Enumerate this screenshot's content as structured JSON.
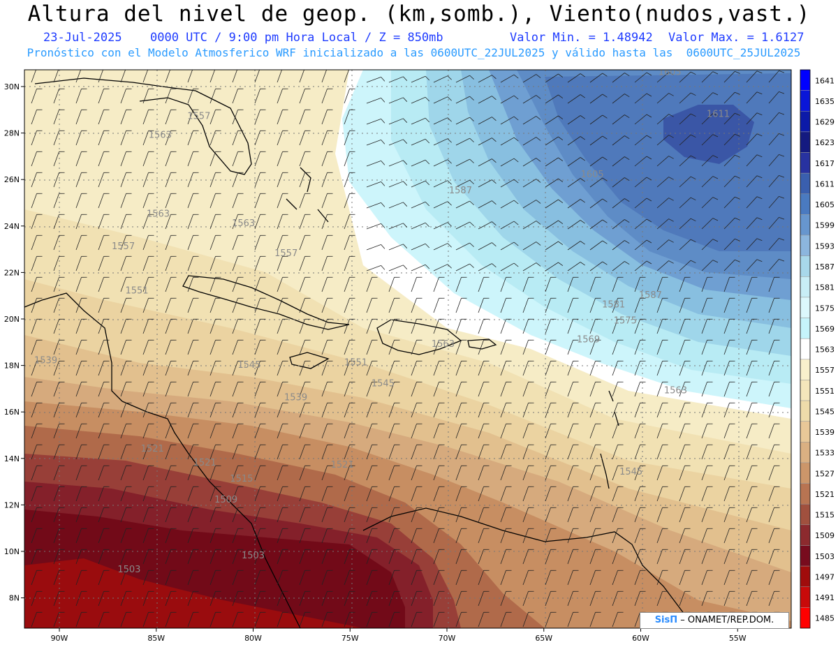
{
  "header": {
    "title": "Altura del nivel de geop. (km,somb.), Viento(nudos,vast.)",
    "date": "23-Jul-2025",
    "time": "0000 UTC / 9:00 pm Hora Local / Z = 850mb",
    "min": "Valor Min. = 1.48942",
    "max": "Valor Max. = 1.6127",
    "subtitle": "Pronóstico con el Modelo Atmosferico WRF inicializado a las 0600UTC_22JUL2025 y válido hasta las  0600UTC_25JUL2025"
  },
  "axes": {
    "lat_labels": [
      "30N",
      "28N",
      "26N",
      "24N",
      "22N",
      "20N",
      "18N",
      "16N",
      "14N",
      "12N",
      "10N",
      "8N"
    ],
    "lat_values": [
      30,
      28,
      26,
      24,
      22,
      20,
      18,
      16,
      14,
      12,
      10,
      8
    ],
    "lon_labels": [
      "90W",
      "85W",
      "80W",
      "75W",
      "70W",
      "65W",
      "60W",
      "55W"
    ],
    "lon_values": [
      -90,
      -85,
      -80,
      -75,
      -70,
      -65,
      -60,
      -55
    ]
  },
  "colorbar": {
    "labels": [
      "1641",
      "1635",
      "1629",
      "1623",
      "1617",
      "1611",
      "1605",
      "1599",
      "1593",
      "1587",
      "1581",
      "1575",
      "1569",
      "1563",
      "1557",
      "1551",
      "1545",
      "1539",
      "1533",
      "1527",
      "1521",
      "1515",
      "1509",
      "1503",
      "1497",
      "1491",
      "1485"
    ],
    "colors": [
      "#0000ff",
      "#0a16d8",
      "#0c1aa8",
      "#141a80",
      "#2832a0",
      "#3a5fae",
      "#4a7ac0",
      "#6796ce",
      "#8cb6de",
      "#a8d8ea",
      "#c8eef6",
      "#dcf8fc",
      "#c6f4fb",
      "#ffffff",
      "#f8f0cc",
      "#f4e6bb",
      "#eedbaa",
      "#e8c898",
      "#dab082",
      "#cc966a",
      "#b87452",
      "#a0503e",
      "#8c2a2e",
      "#780c1e",
      "#a00c0c",
      "#c80a0a",
      "#ff0000"
    ]
  },
  "contour_labels": [
    {
      "text": "1557",
      "lon": -82.8,
      "lat": 28.6
    },
    {
      "text": "1563",
      "lon": -84.8,
      "lat": 27.8
    },
    {
      "text": "1563",
      "lon": -84.9,
      "lat": 24.4
    },
    {
      "text": "1563",
      "lon": -80.5,
      "lat": 24.0
    },
    {
      "text": "1557",
      "lon": -86.7,
      "lat": 23.0
    },
    {
      "text": "1557",
      "lon": -78.3,
      "lat": 22.7
    },
    {
      "text": "1551",
      "lon": -86.0,
      "lat": 21.1
    },
    {
      "text": "1539",
      "lon": -90.7,
      "lat": 18.1
    },
    {
      "text": "1545",
      "lon": -80.2,
      "lat": 17.9
    },
    {
      "text": "1551",
      "lon": -74.7,
      "lat": 18.0
    },
    {
      "text": "1545",
      "lon": -73.3,
      "lat": 17.1
    },
    {
      "text": "1563",
      "lon": -70.2,
      "lat": 18.8
    },
    {
      "text": "1539",
      "lon": -77.8,
      "lat": 16.5
    },
    {
      "text": "1521",
      "lon": -85.2,
      "lat": 14.3
    },
    {
      "text": "1521",
      "lon": -82.5,
      "lat": 13.7
    },
    {
      "text": "1515",
      "lon": -80.6,
      "lat": 13.0
    },
    {
      "text": "1509",
      "lon": -81.4,
      "lat": 12.1
    },
    {
      "text": "1521",
      "lon": -75.4,
      "lat": 13.6
    },
    {
      "text": "1503",
      "lon": -86.4,
      "lat": 9.1
    },
    {
      "text": "1503",
      "lon": -80.0,
      "lat": 9.7
    },
    {
      "text": "1587",
      "lon": -69.3,
      "lat": 25.4
    },
    {
      "text": "1605",
      "lon": -62.5,
      "lat": 26.1
    },
    {
      "text": "1611",
      "lon": -56.0,
      "lat": 28.7
    },
    {
      "text": "1605",
      "lon": -58.5,
      "lat": 30.5
    },
    {
      "text": "1581",
      "lon": -61.4,
      "lat": 20.5
    },
    {
      "text": "1587",
      "lon": -59.5,
      "lat": 20.9
    },
    {
      "text": "1575",
      "lon": -60.8,
      "lat": 19.8
    },
    {
      "text": "1569",
      "lon": -62.7,
      "lat": 19.0
    },
    {
      "text": "1563",
      "lon": -58.2,
      "lat": 16.8
    },
    {
      "text": "1545",
      "lon": -60.5,
      "lat": 13.3
    }
  ],
  "credit": {
    "logo": "SisΠ",
    "text": "– ONAMET/REP.DOM."
  }
}
